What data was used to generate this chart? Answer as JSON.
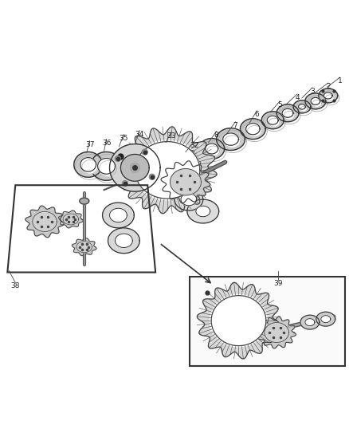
{
  "bg_color": "#ffffff",
  "fig_width": 4.38,
  "fig_height": 5.33,
  "dpi": 100,
  "line_color": "#333333",
  "shaft_color": "#555555",
  "gear_color": "#444444",
  "ring_fill": "#e8e8e8",
  "dark_fill": "#999999",
  "light_fill": "#f0f0f0"
}
